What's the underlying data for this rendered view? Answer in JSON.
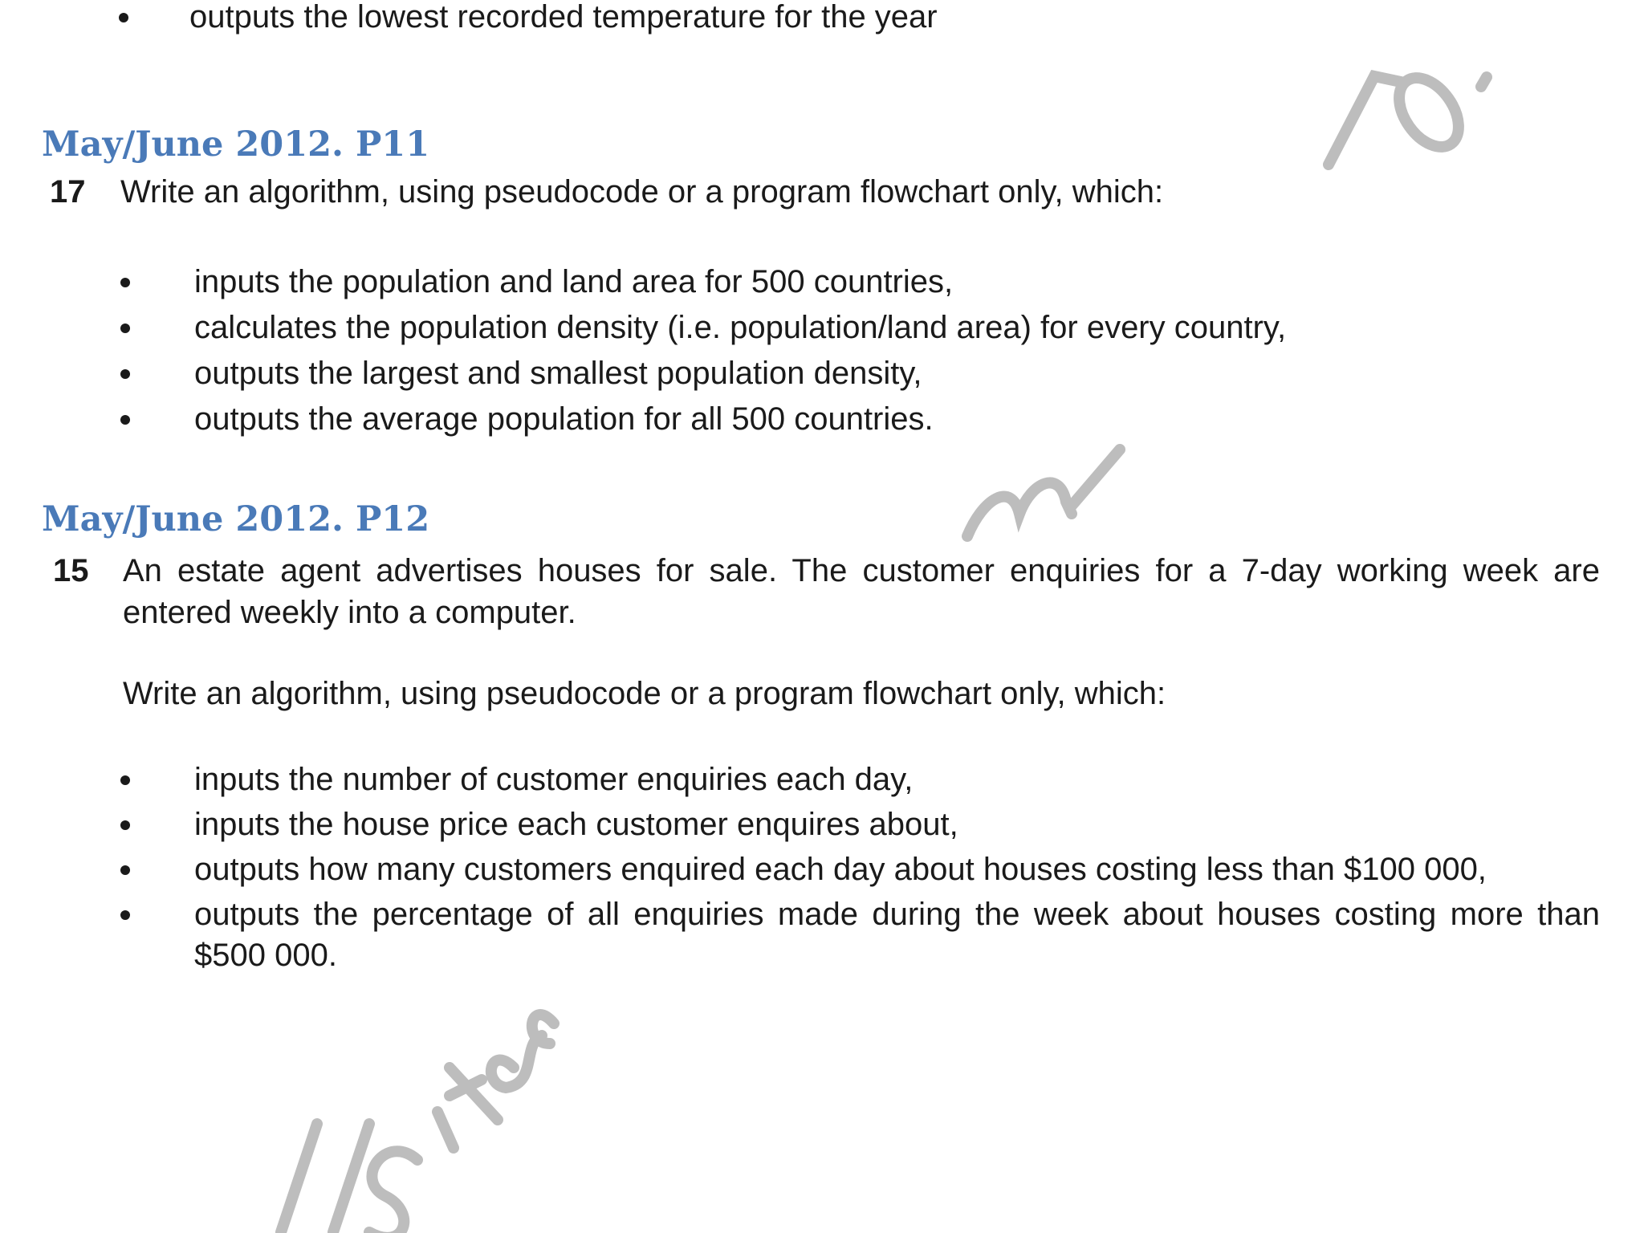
{
  "top_bullet": "outputs the lowest recorded temperature for the year",
  "sections": [
    {
      "heading": "May/June 2012. P11",
      "number": "17",
      "intro": "Write an algorithm, using pseudocode or a program flowchart only, which:",
      "bullets": [
        "inputs the population and land area for 500 countries,",
        "calculates the population density (i.e. population/land area) for every country,",
        "outputs the largest and smallest population density,",
        "outputs the average population for all 500 countries."
      ]
    },
    {
      "heading": "May/June 2012. P12",
      "number": "15",
      "intro": "An estate agent advertises houses for sale. The customer enquiries for a 7-day working week are entered weekly into a computer.",
      "intro2": "Write an algorithm, using pseudocode or a program flowchart only, which:",
      "bullets": [
        "inputs the number of customer enquiries each day,",
        "inputs the house price each customer enquires about,",
        "outputs how many customers enquired each day about houses costing less than $100 000,",
        "outputs the percentage of all enquiries made during the week about houses costing more than $500 000."
      ]
    }
  ],
  "colors": {
    "heading": "#4a7ab8",
    "text": "#1a1a1a",
    "watermark": "#bdbdbd"
  }
}
